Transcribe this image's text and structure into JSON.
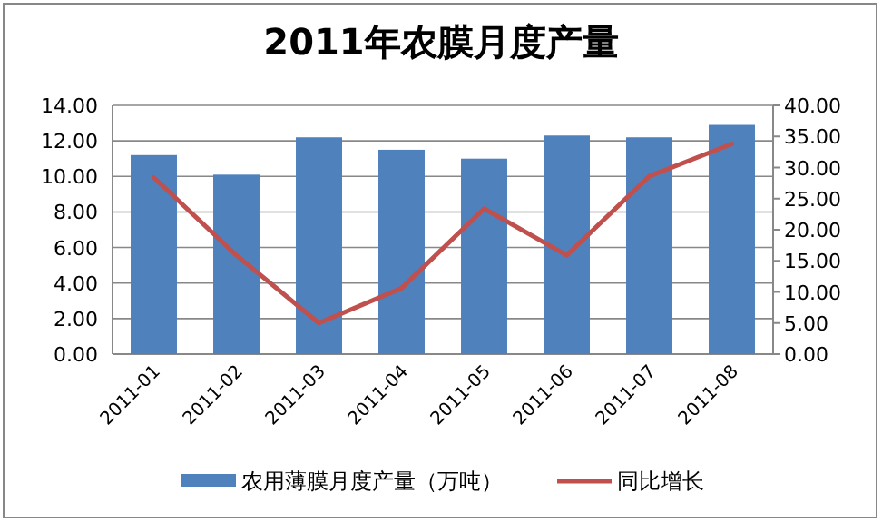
{
  "chart_data": {
    "type": "bar",
    "title": "2011年农膜月度产量",
    "categories": [
      "2011-01",
      "2011-02",
      "2011-03",
      "2011-04",
      "2011-05",
      "2011-06",
      "2011-07",
      "2011-08"
    ],
    "series": [
      {
        "name": "农用薄膜月度产量（万吨）",
        "color": "#4f81bd",
        "values": [
          11.2,
          10.1,
          12.2,
          11.5,
          11.0,
          12.3,
          12.2,
          12.9
        ]
      },
      {
        "name": "同比增长",
        "type": "line",
        "axis": "y2",
        "color": "#c0504d",
        "values": [
          28.4,
          15.9,
          5.0,
          10.6,
          23.4,
          15.9,
          28.6,
          33.8
        ]
      }
    ],
    "ylim": [
      0,
      14
    ],
    "yticks": [
      {
        "value": 0,
        "label": "0.00"
      },
      {
        "value": 2,
        "label": "2.00"
      },
      {
        "value": 4,
        "label": "4.00"
      },
      {
        "value": 6,
        "label": "6.00"
      },
      {
        "value": 8,
        "label": "8.00"
      },
      {
        "value": 10,
        "label": "10.00"
      },
      {
        "value": 12,
        "label": "12.00"
      },
      {
        "value": 14,
        "label": "14.00"
      }
    ],
    "y2lim": [
      0,
      40
    ],
    "y2ticks": [
      {
        "value": 0,
        "label": "0.00"
      },
      {
        "value": 5,
        "label": "5.00"
      },
      {
        "value": 10,
        "label": "10.00"
      },
      {
        "value": 15,
        "label": "15.00"
      },
      {
        "value": 20,
        "label": "20.00"
      },
      {
        "value": 25,
        "label": "25.00"
      },
      {
        "value": 30,
        "label": "30.00"
      },
      {
        "value": 35,
        "label": "35.00"
      },
      {
        "value": 40,
        "label": "40.00"
      }
    ],
    "grid": "y",
    "legend": "bottom",
    "marker": "none",
    "line_style": "solid"
  }
}
